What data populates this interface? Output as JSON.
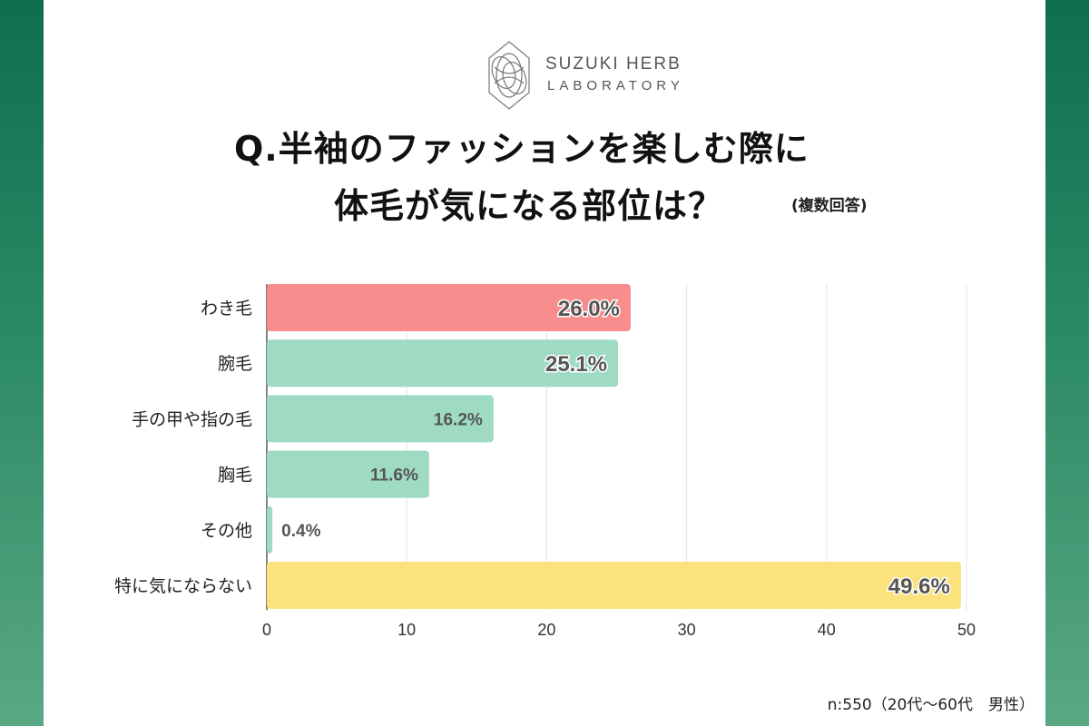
{
  "brand": {
    "line1": "SUZUKI HERB",
    "line2": "LABORATORY"
  },
  "title": {
    "line1": "Q.半袖のファッションを楽しむ際に",
    "line2": "体毛が気になる部位は？",
    "note": "(複数回答)"
  },
  "footnote": "n:550（20代〜60代　男性）",
  "colors": {
    "background": "#1a7a58",
    "highlight_bar": "#f78d8d",
    "default_bar": "#9fdbc3",
    "neutral_bar": "#fbe27c"
  },
  "chart_data": {
    "type": "bar",
    "orientation": "horizontal",
    "categories": [
      "わき毛",
      "腕毛",
      "手の甲や指の毛",
      "胸毛",
      "その他",
      "特に気にならない"
    ],
    "values": [
      26.0,
      25.1,
      16.2,
      11.6,
      0.4,
      49.6
    ],
    "value_labels": [
      "26.0%",
      "25.1%",
      "16.2%",
      "11.6%",
      "0.4%",
      "49.6%"
    ],
    "bar_colors": [
      "#f78d8d",
      "#9fdbc3",
      "#9fdbc3",
      "#9fdbc3",
      "#9fdbc3",
      "#fbe27c"
    ],
    "x_ticks": [
      "0",
      "10",
      "20",
      "30",
      "40",
      "50"
    ],
    "xlim": [
      0,
      50
    ],
    "grid": true,
    "xlabel": "",
    "ylabel": ""
  }
}
